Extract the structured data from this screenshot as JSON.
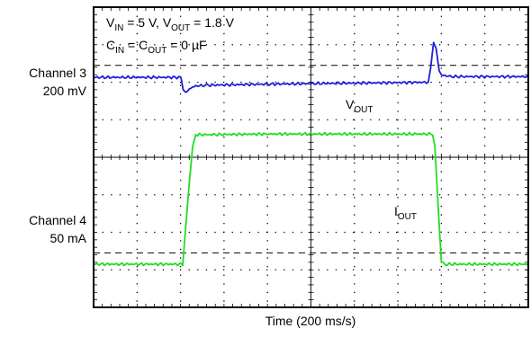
{
  "channels": [
    {
      "name": "Channel 3",
      "scale": "200 mV"
    },
    {
      "name": "Channel 4",
      "scale": "50 mA"
    }
  ],
  "conditions": {
    "line1": {
      "v": "V",
      "in": "IN",
      "eq1": " = 5 V, ",
      "out": "OUT",
      "eq2": " = 1.8 V"
    },
    "line2": {
      "c": "C",
      "in": "IN",
      "eq1": " = C",
      "out": "OUT",
      "eq2": " = 0 µF"
    }
  },
  "trace_labels": {
    "vout": {
      "main": "V",
      "sub": "OUT"
    },
    "iout": {
      "main": "I",
      "sub": "OUT"
    }
  },
  "xlabel": "Time (200 ms/s)",
  "colors": {
    "vout": "#1f1fd6",
    "iout": "#22dd22",
    "grid": "#000000",
    "frame": "#000000"
  },
  "chart_data": {
    "type": "line",
    "title": "",
    "xlabel": "Time (200 ms/s)",
    "x_divisions": 10,
    "y_divisions": 8,
    "grid": "dotted",
    "series": [
      {
        "name": "VOUT",
        "channel": 3,
        "units": "div",
        "points": [
          [
            0.0,
            6.13
          ],
          [
            2.0,
            6.13
          ],
          [
            2.02,
            6.05
          ],
          [
            2.06,
            5.8
          ],
          [
            2.12,
            5.7
          ],
          [
            2.2,
            5.82
          ],
          [
            2.35,
            5.9
          ],
          [
            2.6,
            5.92
          ],
          [
            4.0,
            5.95
          ],
          [
            7.7,
            6.0
          ],
          [
            7.75,
            6.35
          ],
          [
            7.82,
            7.06
          ],
          [
            7.88,
            6.9
          ],
          [
            7.95,
            6.3
          ],
          [
            8.0,
            6.2
          ],
          [
            8.2,
            6.15
          ],
          [
            10.0,
            6.15
          ]
        ]
      },
      {
        "name": "IOUT",
        "channel": 4,
        "units": "div",
        "points": [
          [
            0.0,
            1.15
          ],
          [
            2.05,
            1.15
          ],
          [
            2.2,
            3.3
          ],
          [
            2.28,
            4.3
          ],
          [
            2.35,
            4.6
          ],
          [
            4.0,
            4.62
          ],
          [
            7.8,
            4.62
          ],
          [
            7.85,
            4.3
          ],
          [
            7.95,
            2.2
          ],
          [
            8.0,
            1.2
          ],
          [
            8.1,
            1.15
          ],
          [
            10.0,
            1.15
          ]
        ]
      }
    ],
    "reference_lines": [
      {
        "name": "upper-dashed",
        "y": 6.45
      },
      {
        "name": "lower-dashed",
        "y": 1.45
      }
    ]
  }
}
